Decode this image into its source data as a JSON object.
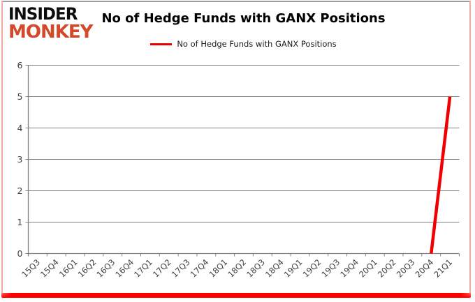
{
  "logo": {
    "line1": "INSIDER",
    "line2": "MONKEY",
    "accent_color": "#d2492b"
  },
  "header": {
    "title": "No of Hedge Funds with GANX Positions"
  },
  "legend": {
    "label": "No of Hedge Funds with GANX Positions",
    "line_color": "#e80000"
  },
  "chart_data": {
    "type": "line",
    "title": "No of Hedge Funds with GANX Positions",
    "categories": [
      "15Q3",
      "15Q4",
      "16Q1",
      "16Q2",
      "16Q3",
      "16Q4",
      "17Q1",
      "17Q2",
      "17Q3",
      "17Q4",
      "18Q1",
      "18Q2",
      "18Q3",
      "18Q4",
      "19Q1",
      "19Q2",
      "19Q3",
      "19Q4",
      "20Q1",
      "20Q2",
      "20Q3",
      "20Q4",
      "21Q1"
    ],
    "series": [
      {
        "name": "No of Hedge Funds with GANX Positions",
        "color": "#f00000",
        "values": [
          null,
          null,
          null,
          null,
          null,
          null,
          null,
          null,
          null,
          null,
          null,
          null,
          null,
          null,
          null,
          null,
          null,
          null,
          null,
          null,
          null,
          0,
          5
        ]
      }
    ],
    "xlabel": "",
    "ylabel": "",
    "ylim": [
      0,
      6
    ],
    "ytick_interval": 1,
    "grid": true,
    "legend_position": "top",
    "grid_color": "#808080",
    "axis_color": "#808080",
    "tick_label_color": "#404040"
  }
}
